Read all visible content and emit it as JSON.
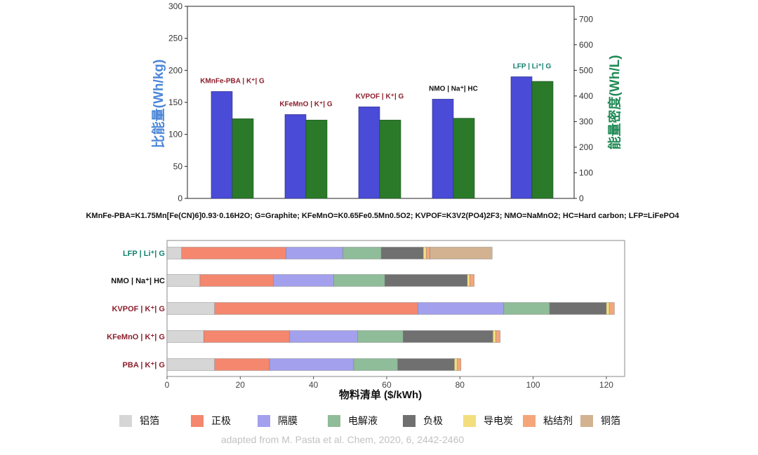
{
  "chart_data": [
    {
      "type": "bar",
      "ylabel": "比能量(Wh/kg)",
      "y2label": "能量密度(Wh/L)",
      "ylim": [
        0,
        300
      ],
      "y2lim": [
        0,
        750
      ],
      "yticks": [
        "0",
        "50",
        "100",
        "150",
        "200",
        "250",
        "300"
      ],
      "y2ticks": [
        "0",
        "100",
        "200",
        "300",
        "400",
        "500",
        "600",
        "700"
      ],
      "categories": [
        "KMnFe-PBA | K⁺| G",
        "KFeMnO | K⁺| G",
        "KVPOF | K⁺| G",
        "NMO | Na⁺| HC",
        "LFP | Li⁺| G"
      ],
      "category_colors": [
        "#8b1e2c",
        "#8b1e2c",
        "#8b1e2c",
        "#111111",
        "#0f7f6e"
      ],
      "series": [
        {
          "axis": "left",
          "color": "#4a4bd6",
          "values": [
            167,
            131,
            143,
            155,
            190
          ]
        },
        {
          "axis": "right",
          "color": "#2a7a2a",
          "values": [
            311,
            306,
            306,
            313,
            457
          ]
        }
      ],
      "footnote": "KMnFe-PBA=K1.75Mn[Fe(CN)6]0.93·0.16H2O;  G=Graphite;  KFeMnO=K0.65Fe0.5Mn0.5O2;  KVPOF=K3V2(PO4)2F3;  NMO=NaMnO2;  HC=Hard carbon;  LFP=LiFePO4"
    },
    {
      "type": "bar",
      "orientation": "horizontal",
      "stacked": true,
      "xlabel": "物料清单 ($/kWh)",
      "xlim": [
        0,
        125
      ],
      "xticks": [
        "0",
        "20",
        "40",
        "60",
        "80",
        "100",
        "120"
      ],
      "categories": [
        "LFP | Li⁺| G",
        "NMO | Na⁺| HC",
        "KVPOF | K⁺| G",
        "KFeMnO | K⁺| G",
        "PBA | K⁺| G"
      ],
      "category_colors": [
        "#0f7f6e",
        "#111111",
        "#8b1e2c",
        "#8b1e2c",
        "#8b1e2c"
      ],
      "series": [
        {
          "name": "铝箔",
          "color": "#d6d6d6",
          "values": [
            4,
            9,
            13,
            10,
            13
          ]
        },
        {
          "name": "正极",
          "color": "#f4876e",
          "values": [
            28.5,
            20,
            55.5,
            23.5,
            15
          ]
        },
        {
          "name": "隔膜",
          "color": "#a3a0ee",
          "values": [
            15.5,
            16.5,
            23.5,
            18.5,
            23
          ]
        },
        {
          "name": "电解液",
          "color": "#8fbc99",
          "values": [
            10.5,
            14,
            12.5,
            12.5,
            12
          ]
        },
        {
          "name": "负极",
          "color": "#707070",
          "values": [
            11.5,
            22.5,
            15.5,
            24.5,
            15.5
          ]
        },
        {
          "name": "导电炭",
          "color": "#f3de7e",
          "values": [
            0.8,
            0.7,
            0.8,
            0.8,
            0.8
          ]
        },
        {
          "name": "粘结剂",
          "color": "#f4a67a",
          "values": [
            1,
            1.2,
            1.4,
            1.2,
            1
          ]
        },
        {
          "name": "铜箔",
          "color": "#d2b290",
          "values": [
            17,
            0,
            0,
            0,
            0
          ]
        }
      ],
      "legend": "bottom"
    }
  ],
  "credit": "adapted from M. Pasta et al. Chem, 2020, 6, 2442-2460"
}
